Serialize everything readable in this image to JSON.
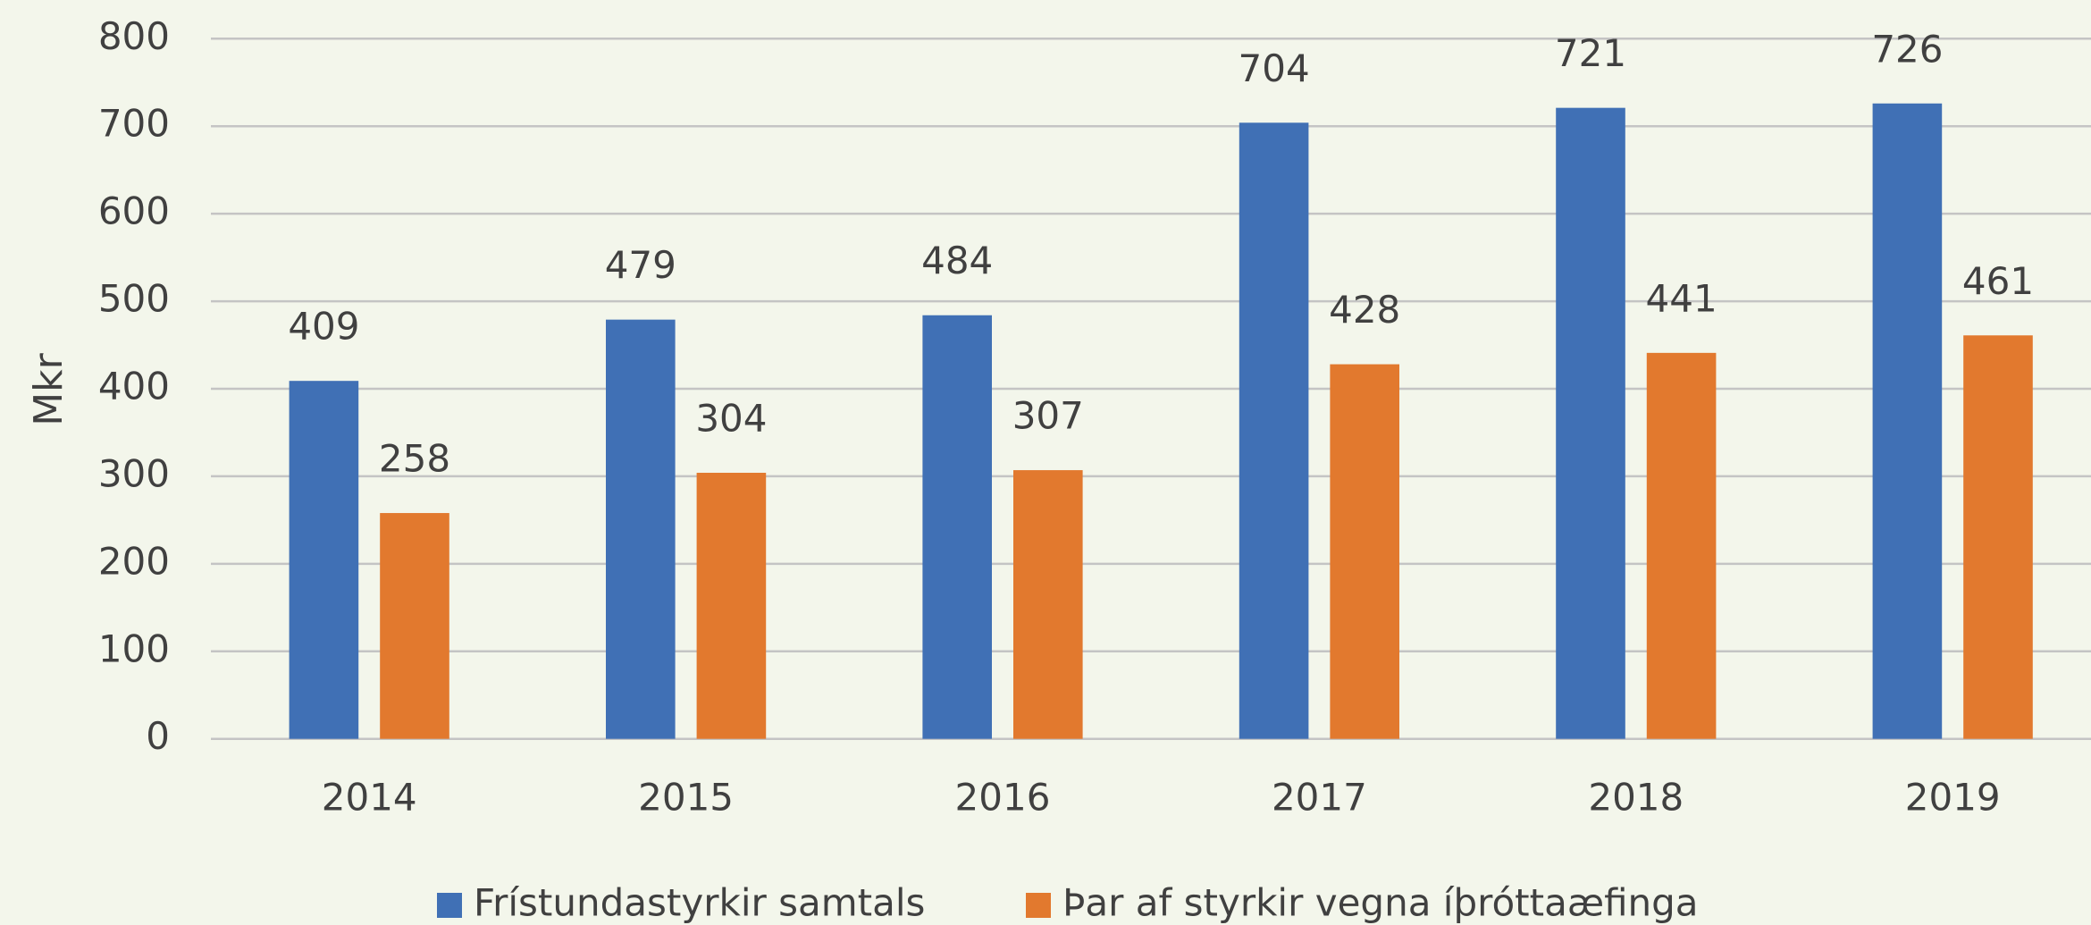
{
  "chart_data": {
    "type": "bar",
    "y_label": "Mkr",
    "categories": [
      "2014",
      "2015",
      "2016",
      "2017",
      "2018",
      "2019"
    ],
    "series": [
      {
        "name": "Frístundastyrkir samtals",
        "color": "#4070b5",
        "values": [
          409,
          479,
          484,
          704,
          721,
          726
        ]
      },
      {
        "name": "Þar af styrkir vegna íþróttaæfinga",
        "color": "#e2792e",
        "values": [
          258,
          304,
          307,
          428,
          441,
          461
        ]
      }
    ],
    "ylim": [
      0,
      800
    ],
    "yticks": [
      0,
      100,
      200,
      300,
      400,
      500,
      600,
      700,
      800
    ],
    "grid": true,
    "legend": "bottom"
  }
}
